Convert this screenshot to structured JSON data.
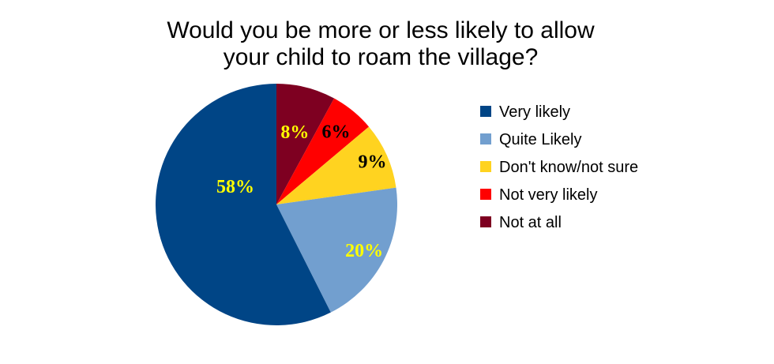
{
  "chart_data": {
    "type": "pie",
    "title_lines": [
      "Would  you be more or less likely to allow",
      "your child to roam the village?"
    ],
    "categories": [
      "Very likely",
      "Quite Likely",
      "Don't know/not sure",
      "Not very likely",
      "Not at all"
    ],
    "values": [
      58,
      20,
      9,
      6,
      8
    ],
    "value_labels": [
      "58%",
      "20%",
      "9%",
      "6%",
      "8%"
    ],
    "colors": [
      "#004586",
      "#729fcf",
      "#ffd320",
      "#ff0000",
      "#7e0021"
    ],
    "label_colors": [
      "#ffff00",
      "#ffff00",
      "#000000",
      "#000000",
      "#ffff00"
    ],
    "legend_position": "right",
    "start": "top, clockwise from the smallest slices"
  }
}
